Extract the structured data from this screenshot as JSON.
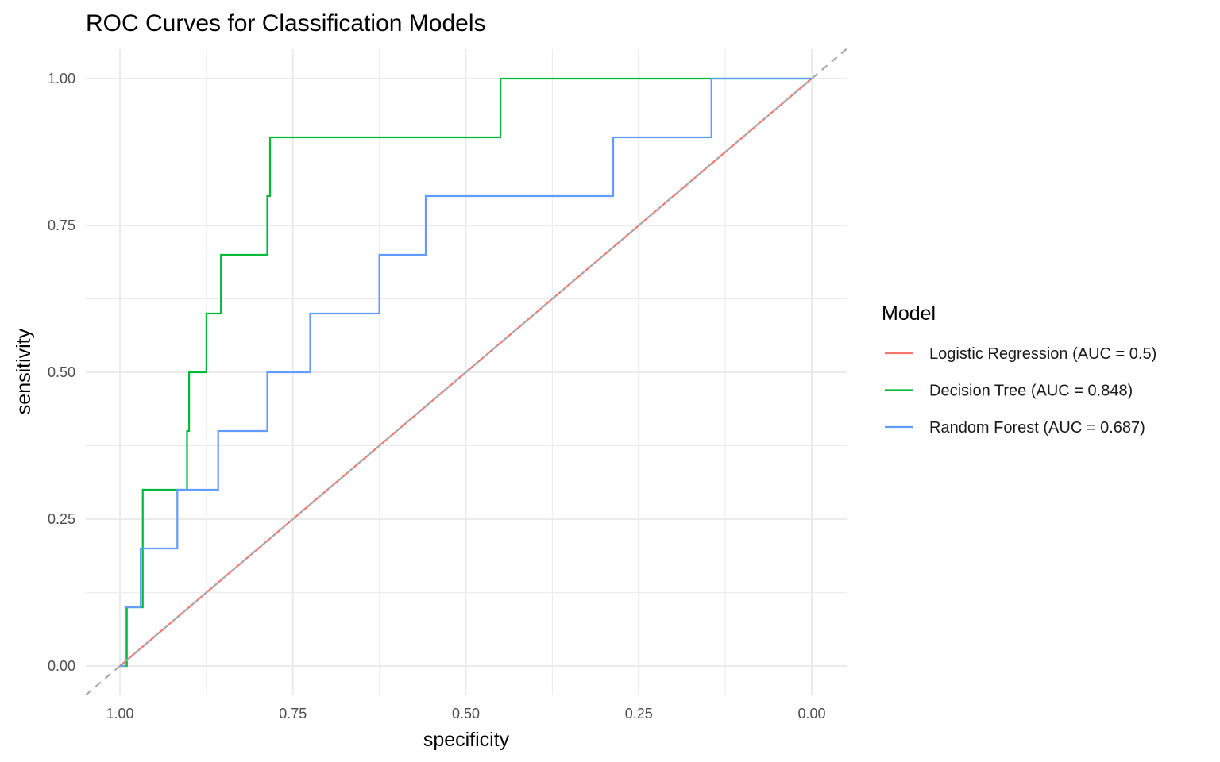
{
  "chart_data": {
    "type": "line",
    "title": "ROC Curves for Classification Models",
    "xlabel": "specificity",
    "ylabel": "sensitivity",
    "x_reversed": true,
    "xlim": [
      1.0,
      0.0
    ],
    "ylim": [
      0.0,
      1.0
    ],
    "x_ticks": [
      "1.00",
      "0.75",
      "0.50",
      "0.25",
      "0.00"
    ],
    "x_tick_values": [
      1.0,
      0.75,
      0.5,
      0.25,
      0.0
    ],
    "y_ticks": [
      "0.00",
      "0.25",
      "0.50",
      "0.75",
      "1.00"
    ],
    "y_tick_values": [
      0.0,
      0.25,
      0.5,
      0.75,
      1.0
    ],
    "grid": true,
    "legend": {
      "title": "Model",
      "placement": "right"
    },
    "reference_line": {
      "from": [
        1.0,
        0.0
      ],
      "to": [
        0.0,
        1.0
      ],
      "color": "#aaaaaa",
      "style": "dashed"
    },
    "series": [
      {
        "name": "Logistic Regression (AUC = 0.5)",
        "color": "#f8766d",
        "points": [
          [
            1.0,
            0.0
          ],
          [
            0.0,
            1.0
          ]
        ]
      },
      {
        "name": "Decision Tree (AUC = 0.848)",
        "color": "#00ba38",
        "points": [
          [
            1.0,
            0.0
          ],
          [
            0.99,
            0.0
          ],
          [
            0.99,
            0.1
          ],
          [
            0.967,
            0.1
          ],
          [
            0.967,
            0.3
          ],
          [
            0.903,
            0.3
          ],
          [
            0.903,
            0.4
          ],
          [
            0.9,
            0.4
          ],
          [
            0.9,
            0.5
          ],
          [
            0.875,
            0.5
          ],
          [
            0.875,
            0.6
          ],
          [
            0.854,
            0.6
          ],
          [
            0.854,
            0.7
          ],
          [
            0.787,
            0.7
          ],
          [
            0.787,
            0.8
          ],
          [
            0.783,
            0.8
          ],
          [
            0.783,
            0.9
          ],
          [
            0.45,
            0.9
          ],
          [
            0.45,
            1.0
          ],
          [
            0.0,
            1.0
          ]
        ]
      },
      {
        "name": "Random Forest (AUC = 0.687)",
        "color": "#619cff",
        "points": [
          [
            1.0,
            0.0
          ],
          [
            0.992,
            0.0
          ],
          [
            0.992,
            0.1
          ],
          [
            0.97,
            0.1
          ],
          [
            0.97,
            0.2
          ],
          [
            0.917,
            0.2
          ],
          [
            0.917,
            0.3
          ],
          [
            0.858,
            0.3
          ],
          [
            0.858,
            0.4
          ],
          [
            0.787,
            0.4
          ],
          [
            0.787,
            0.5
          ],
          [
            0.725,
            0.5
          ],
          [
            0.725,
            0.6
          ],
          [
            0.625,
            0.6
          ],
          [
            0.625,
            0.7
          ],
          [
            0.558,
            0.7
          ],
          [
            0.558,
            0.8
          ],
          [
            0.287,
            0.8
          ],
          [
            0.287,
            0.9
          ],
          [
            0.145,
            0.9
          ],
          [
            0.145,
            1.0
          ],
          [
            0.0,
            1.0
          ]
        ]
      }
    ]
  }
}
